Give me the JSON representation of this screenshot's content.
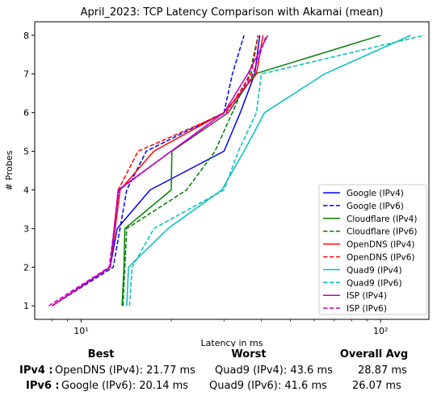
{
  "chart_data": {
    "type": "line",
    "title": "April_2023: TCP Latency Comparison with Akamai (mean)",
    "xlabel": "Latency in ms",
    "ylabel": "# Probes",
    "xscale": "log",
    "xlim": [
      7,
      145
    ],
    "ylim": [
      0.65,
      8.35
    ],
    "x_ticks": [
      {
        "value": 10,
        "label": "10¹"
      },
      {
        "value": 100,
        "label": "10²"
      }
    ],
    "y_ticks": [
      1,
      2,
      3,
      4,
      5,
      6,
      7,
      8
    ],
    "grid": false,
    "legend_position": "lower-right",
    "series": [
      {
        "name": "Google (IPv4)",
        "color": "#0000ff",
        "dash": "solid",
        "points": [
          [
            8,
            1
          ],
          [
            12.5,
            2
          ],
          [
            13.2,
            3
          ],
          [
            17,
            4
          ],
          [
            30,
            5
          ],
          [
            34,
            6
          ],
          [
            38,
            7
          ],
          [
            39.5,
            8
          ]
        ]
      },
      {
        "name": "Google (IPv6)",
        "color": "#0000ff",
        "dash": "dashed",
        "points": [
          [
            8,
            1
          ],
          [
            12.8,
            2
          ],
          [
            14.2,
            4
          ],
          [
            16.5,
            5
          ],
          [
            30,
            6
          ],
          [
            32,
            7
          ],
          [
            35,
            8
          ]
        ]
      },
      {
        "name": "Cloudflare (IPv4)",
        "color": "#008000",
        "dash": "solid",
        "points": [
          [
            13.7,
            1
          ],
          [
            13.9,
            2
          ],
          [
            14,
            3
          ],
          [
            20,
            4
          ],
          [
            20.1,
            5
          ],
          [
            31,
            6
          ],
          [
            38,
            7
          ],
          [
            100,
            8
          ]
        ]
      },
      {
        "name": "Cloudflare (IPv6)",
        "color": "#008000",
        "dash": "dashed",
        "points": [
          [
            13.8,
            1
          ],
          [
            14,
            2
          ],
          [
            14.2,
            3
          ],
          [
            22.5,
            4
          ],
          [
            28,
            5
          ],
          [
            32,
            6
          ],
          [
            36.5,
            7
          ],
          [
            39,
            8
          ]
        ]
      },
      {
        "name": "OpenDNS (IPv4)",
        "color": "#ff0000",
        "dash": "solid",
        "points": [
          [
            8,
            1
          ],
          [
            12.5,
            2
          ],
          [
            13.5,
            4
          ],
          [
            17.5,
            5
          ],
          [
            30,
            6
          ],
          [
            38.5,
            7
          ],
          [
            40.5,
            8
          ]
        ]
      },
      {
        "name": "OpenDNS (IPv6)",
        "color": "#ff0000",
        "dash": "dashed",
        "points": [
          [
            8,
            1
          ],
          [
            12.5,
            2
          ],
          [
            13.3,
            4
          ],
          [
            15.5,
            5
          ],
          [
            30.5,
            6
          ],
          [
            37,
            7
          ],
          [
            39,
            8
          ]
        ]
      },
      {
        "name": "Quad9 (IPv4)",
        "color": "#00bfbf",
        "dash": "solid",
        "points": [
          [
            14.2,
            1
          ],
          [
            14.4,
            2
          ],
          [
            19.5,
            3
          ],
          [
            29.5,
            4
          ],
          [
            35,
            5
          ],
          [
            41,
            6
          ],
          [
            65,
            7
          ],
          [
            126,
            8
          ]
        ]
      },
      {
        "name": "Quad9 (IPv6)",
        "color": "#00bfbf",
        "dash": "dashed",
        "points": [
          [
            14.5,
            1
          ],
          [
            14.8,
            2
          ],
          [
            17.5,
            3
          ],
          [
            30,
            4
          ],
          [
            33.5,
            5
          ],
          [
            38.5,
            6
          ],
          [
            40,
            7
          ],
          [
            140,
            8
          ]
        ]
      },
      {
        "name": "ISP (IPv4)",
        "color": "#bf00bf",
        "dash": "solid",
        "points": [
          [
            8,
            1
          ],
          [
            12.5,
            2
          ],
          [
            13.3,
            4
          ],
          [
            20,
            5
          ],
          [
            30,
            6
          ],
          [
            36,
            7
          ],
          [
            42,
            8
          ]
        ]
      },
      {
        "name": "ISP (IPv6)",
        "color": "#bf00bf",
        "dash": "dashed",
        "points": [
          [
            7.8,
            1
          ],
          [
            12.4,
            2
          ],
          [
            13.4,
            4
          ],
          [
            20,
            5
          ],
          [
            31,
            6
          ],
          [
            37.5,
            7
          ],
          [
            41.5,
            8
          ]
        ]
      }
    ]
  },
  "summary": {
    "headers": {
      "best": "Best",
      "worst": "Worst",
      "avg": "Overall Avg"
    },
    "rows": [
      {
        "label": "IPv4 :",
        "best": "OpenDNS (IPv4): 21.77 ms",
        "worst": "Quad9 (IPv4): 43.6 ms",
        "avg": "28.87 ms"
      },
      {
        "label": "IPv6 :",
        "best": "Google (IPv6): 20.14 ms",
        "worst": "Quad9 (IPv6): 41.6 ms",
        "avg": "26.07 ms"
      }
    ]
  }
}
